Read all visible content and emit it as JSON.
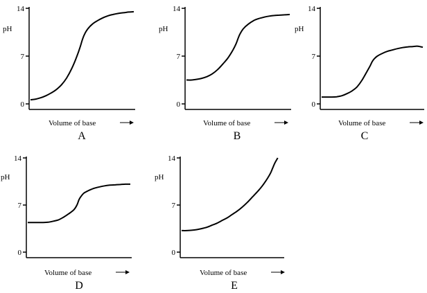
{
  "chart_data": [
    {
      "panel": "A",
      "type": "line",
      "ylabel": "pH",
      "xlabel": "Volume of base",
      "yticks": [
        0,
        7,
        14
      ],
      "ylim": [
        0,
        14
      ],
      "xlim": [
        0,
        1
      ],
      "series": [
        {
          "x": [
            0,
            0.05,
            0.1,
            0.15,
            0.2,
            0.25,
            0.3,
            0.35,
            0.4,
            0.45,
            0.48,
            0.5,
            0.52,
            0.55,
            0.6,
            0.65,
            0.7,
            0.75,
            0.8,
            0.85,
            0.9,
            0.95,
            1.0
          ],
          "y": [
            0.6,
            0.7,
            0.9,
            1.2,
            1.6,
            2.1,
            2.8,
            3.8,
            5.2,
            7.0,
            8.3,
            9.3,
            10.1,
            10.9,
            11.7,
            12.2,
            12.6,
            12.9,
            13.1,
            13.25,
            13.35,
            13.45,
            13.5
          ]
        }
      ]
    },
    {
      "panel": "B",
      "type": "line",
      "ylabel": "pH",
      "xlabel": "Volume of base",
      "yticks": [
        0,
        7,
        14
      ],
      "ylim": [
        0,
        14
      ],
      "xlim": [
        0,
        1
      ],
      "series": [
        {
          "x": [
            0,
            0.05,
            0.1,
            0.15,
            0.2,
            0.25,
            0.3,
            0.35,
            0.4,
            0.45,
            0.48,
            0.5,
            0.52,
            0.55,
            0.6,
            0.65,
            0.7,
            0.75,
            0.8,
            0.85,
            0.9,
            0.95,
            1.0
          ],
          "y": [
            3.5,
            3.5,
            3.6,
            3.75,
            4.0,
            4.4,
            5.0,
            5.8,
            6.7,
            7.9,
            8.8,
            9.6,
            10.3,
            11.0,
            11.7,
            12.2,
            12.5,
            12.7,
            12.85,
            12.95,
            13.0,
            13.05,
            13.1
          ]
        }
      ]
    },
    {
      "panel": "C",
      "type": "line",
      "ylabel": "pH",
      "xlabel": "Volume of base",
      "yticks": [
        0,
        7,
        14
      ],
      "ylim": [
        0,
        14
      ],
      "xlim": [
        0,
        1
      ],
      "series": [
        {
          "x": [
            0,
            0.05,
            0.1,
            0.15,
            0.2,
            0.25,
            0.3,
            0.35,
            0.4,
            0.45,
            0.48,
            0.5,
            0.52,
            0.55,
            0.6,
            0.65,
            0.7,
            0.75,
            0.8,
            0.85,
            0.9,
            0.95,
            1.0
          ],
          "y": [
            1.0,
            1.0,
            1.0,
            1.05,
            1.2,
            1.5,
            1.9,
            2.5,
            3.5,
            4.8,
            5.6,
            6.2,
            6.6,
            7.0,
            7.4,
            7.7,
            7.9,
            8.1,
            8.25,
            8.35,
            8.4,
            8.45,
            8.3
          ]
        }
      ]
    },
    {
      "panel": "D",
      "type": "line",
      "ylabel": "pH",
      "xlabel": "Volume of base",
      "yticks": [
        0,
        7,
        14
      ],
      "ylim": [
        0,
        14
      ],
      "xlim": [
        0,
        1
      ],
      "series": [
        {
          "x": [
            0,
            0.05,
            0.1,
            0.15,
            0.2,
            0.25,
            0.3,
            0.35,
            0.4,
            0.45,
            0.48,
            0.5,
            0.52,
            0.55,
            0.6,
            0.65,
            0.7,
            0.75,
            0.8,
            0.85,
            0.9,
            0.95,
            1.0
          ],
          "y": [
            4.4,
            4.4,
            4.4,
            4.4,
            4.45,
            4.6,
            4.8,
            5.2,
            5.7,
            6.3,
            7.0,
            7.8,
            8.3,
            8.8,
            9.2,
            9.5,
            9.7,
            9.85,
            9.95,
            10.0,
            10.05,
            10.1,
            10.1
          ]
        }
      ]
    },
    {
      "panel": "E",
      "type": "line",
      "ylabel": "pH",
      "xlabel": "Volume of base",
      "yticks": [
        0,
        7,
        14
      ],
      "ylim": [
        0,
        14
      ],
      "xlim": [
        0,
        1
      ],
      "series": [
        {
          "x": [
            0,
            0.05,
            0.1,
            0.15,
            0.2,
            0.25,
            0.3,
            0.35,
            0.4,
            0.45,
            0.5,
            0.55,
            0.6,
            0.65,
            0.7,
            0.75,
            0.8,
            0.85,
            0.88,
            0.9,
            0.92,
            0.95
          ],
          "y": [
            3.2,
            3.2,
            3.25,
            3.35,
            3.5,
            3.7,
            4.0,
            4.3,
            4.7,
            5.1,
            5.6,
            6.1,
            6.7,
            7.4,
            8.2,
            9.0,
            9.9,
            11.0,
            11.8,
            12.5,
            13.2,
            14.0
          ]
        }
      ]
    }
  ]
}
